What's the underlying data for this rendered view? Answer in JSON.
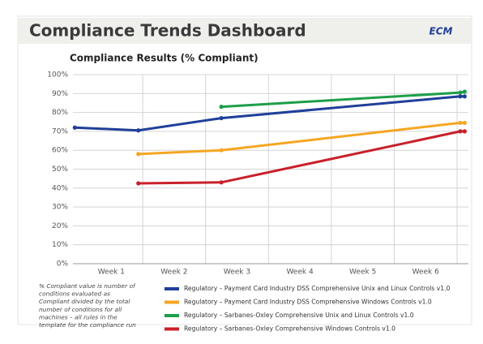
{
  "header": {
    "title": "Compliance Trends Dashboard",
    "logo": "ECM"
  },
  "chart_data": {
    "type": "line",
    "title": "Compliance Results (% Compliant)",
    "categories": [
      "Week 1",
      "Week 2",
      "Week 3",
      "Week 4",
      "Week 5",
      "Week 6"
    ],
    "xlim": [
      0.39,
      6.68
    ],
    "xticks": [
      1.5,
      2.5,
      3.5,
      4.5,
      5.5,
      6.5
    ],
    "ylim": [
      0,
      100
    ],
    "yticks": [
      {
        "value": 0,
        "label": "0%"
      },
      {
        "value": 10,
        "label": "10%"
      },
      {
        "value": 20,
        "label": "20%"
      },
      {
        "value": 30,
        "label": "30%"
      },
      {
        "value": 40,
        "label": "40%"
      },
      {
        "value": 50,
        "label": "50%"
      },
      {
        "value": 60,
        "label": "60%"
      },
      {
        "value": 70,
        "label": "70%"
      },
      {
        "value": 80,
        "label": "80%"
      },
      {
        "value": 90,
        "label": "90%"
      },
      {
        "value": 100,
        "label": "100%"
      }
    ],
    "grid": true,
    "series": [
      {
        "name": "Regulatory – Payment Card Industry DSS Comprehensive Unix and Linux Controls v1.0",
        "color": "#1f3f99",
        "x": [
          0.42,
          1.43,
          2.75,
          6.55,
          6.62
        ],
        "values": [
          72,
          70.5,
          77,
          88.5,
          88.5
        ]
      },
      {
        "name": "Regulatory – Payment Card Industry DSS Comprehensive Windows Controls v1.0",
        "color": "#f5a623",
        "x": [
          1.43,
          2.75,
          6.55,
          6.62
        ],
        "values": [
          58,
          60,
          74.5,
          74.5
        ]
      },
      {
        "name": "Regulatory – Sarbanes-Oxley Comprehensive Unix and Linux Controls v1.0",
        "color": "#1e9e4a",
        "x": [
          2.75,
          6.55,
          6.62
        ],
        "values": [
          83,
          90.5,
          91
        ]
      },
      {
        "name": "Regulatory – Sarbanes-Oxley Comprehensive Windows Controls v1.0",
        "color": "#c9202a",
        "x": [
          1.43,
          2.75,
          6.55,
          6.62
        ],
        "values": [
          42.5,
          43,
          70,
          70
        ]
      }
    ],
    "note": [
      "% Compliant value is number of",
      "conditions evaluated as",
      "Compliant divided by the total",
      "number of conditions for all",
      "machines – all rules in the",
      "template for the compliance run"
    ]
  }
}
